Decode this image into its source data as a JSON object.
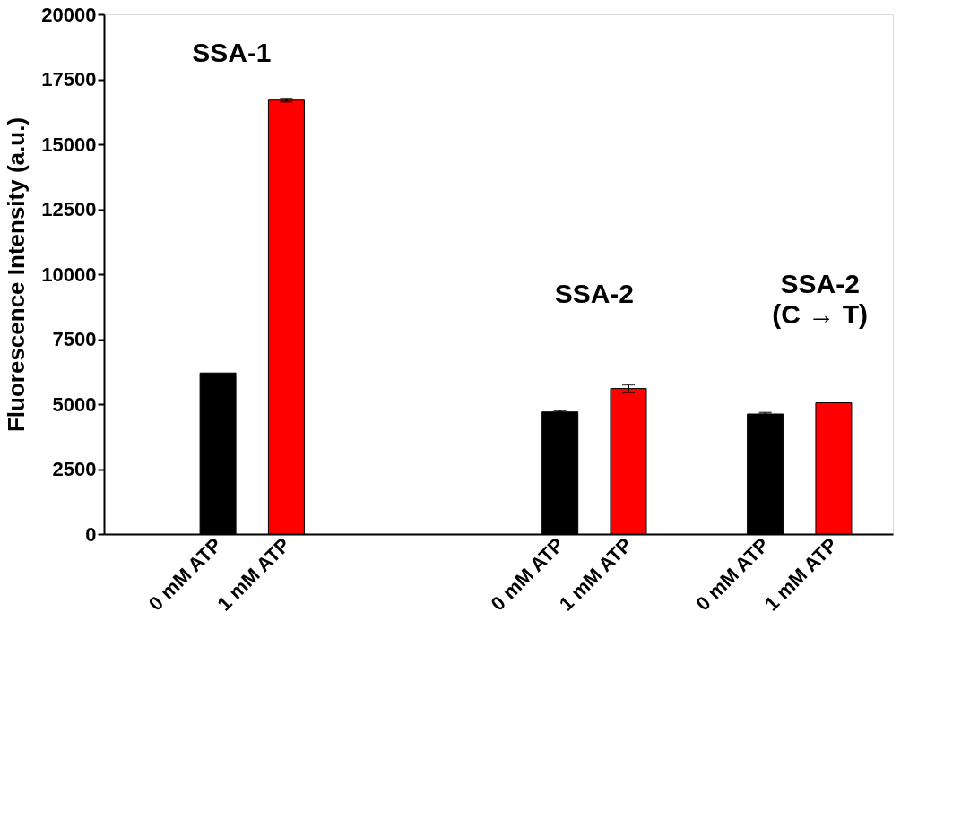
{
  "chart_data": {
    "type": "bar",
    "ylabel": "Fluorescence Intensity (a.u.)",
    "categories": [
      "0 mM ATP",
      "1 mM ATP",
      null,
      null,
      null,
      "0 mM ATP",
      "1 mM ATP",
      null,
      "0 mM ATP",
      "1 mM ATP"
    ],
    "values": [
      6200,
      16700,
      null,
      null,
      null,
      4700,
      5600,
      null,
      4620,
      5050
    ],
    "colors": [
      "#000000",
      "#ff0000",
      "#000000",
      "#000000",
      "#000000",
      "#000000",
      "#ff0000",
      "#000000",
      "#000000",
      "#ff0000"
    ],
    "errors": [
      null,
      60,
      null,
      null,
      null,
      50,
      150,
      null,
      50,
      null
    ],
    "ylim": [
      0,
      20000
    ],
    "yticks": [
      0,
      2500,
      5000,
      7500,
      10000,
      12500,
      15000,
      17500,
      20000
    ],
    "annotations": [
      "SSA-1",
      "SSA-2",
      "SSA-2\n(C → T)"
    ],
    "grid": false
  }
}
